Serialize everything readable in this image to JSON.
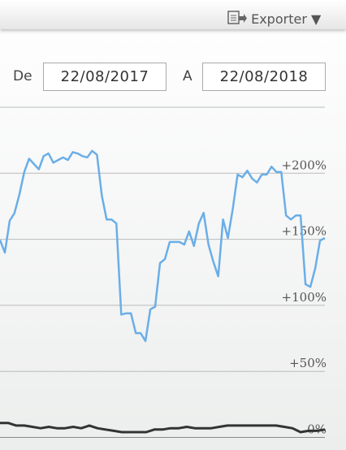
{
  "toolbar": {
    "export": "Exporter"
  },
  "date_range": {
    "from_label": "De",
    "from": "22/08/2017",
    "to_label": "A",
    "to": "22/08/2018"
  },
  "chart_data": {
    "type": "line",
    "ylim": [
      -9.5,
      250
    ],
    "yticks": [
      {
        "value": 0,
        "label": "0%"
      },
      {
        "value": 50,
        "label": "+50%"
      },
      {
        "value": 100,
        "label": "+100%"
      },
      {
        "value": 150,
        "label": "+150%"
      },
      {
        "value": 200,
        "label": "+200%"
      }
    ],
    "grid": true,
    "series": [
      {
        "color": "#6aaee8",
        "values": [
          149.5,
          140,
          164,
          170,
          184,
          201,
          211,
          207,
          203,
          213,
          215,
          208,
          210,
          212,
          210,
          216,
          215,
          213,
          212,
          217,
          214,
          183,
          165,
          165,
          162,
          93,
          94,
          94,
          79,
          79,
          73,
          97,
          99,
          132,
          135,
          148,
          148,
          148,
          146,
          156,
          145,
          162,
          170,
          146,
          133,
          122,
          165,
          151,
          173,
          199,
          197,
          202,
          196,
          193,
          199,
          199,
          205,
          201,
          201,
          168,
          165,
          168,
          168,
          116,
          114,
          128,
          149,
          151
        ]
      },
      {
        "color": "#333333",
        "values": [
          11,
          11,
          9,
          9,
          8,
          7,
          8,
          7,
          7,
          8,
          7,
          9,
          7,
          6,
          5,
          4,
          4,
          4,
          4,
          6,
          6,
          7,
          7,
          8,
          7,
          7,
          7,
          8,
          9,
          9,
          9,
          9,
          9,
          9,
          9,
          8,
          7,
          4,
          5,
          5,
          6
        ]
      }
    ]
  }
}
